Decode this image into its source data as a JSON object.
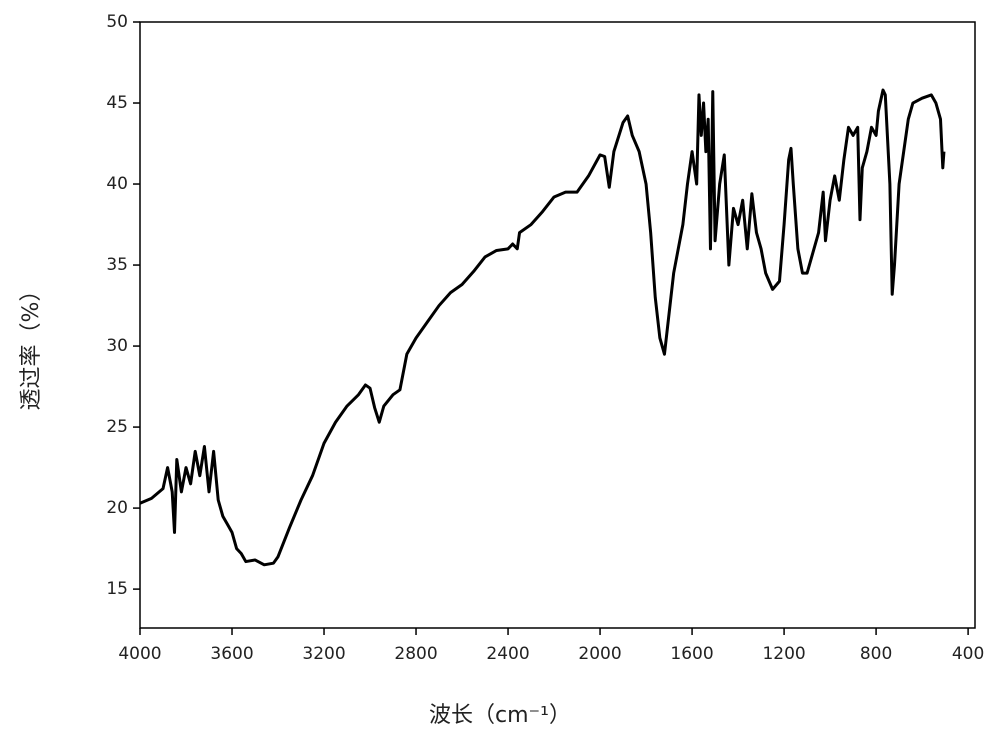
{
  "chart_data": {
    "type": "line",
    "x_label": "波长（cm⁻¹）",
    "y_label": "透过率（%）",
    "xlim": [
      4000,
      370
    ],
    "ylim": [
      12.6,
      50
    ],
    "xticks": [
      4000,
      3600,
      3200,
      2800,
      2400,
      2000,
      1600,
      1200,
      800,
      400
    ],
    "yticks": [
      15,
      20,
      25,
      30,
      35,
      40,
      45,
      50
    ],
    "grid": false,
    "series": [
      {
        "name": null,
        "color": "#000000",
        "x": [
          4000,
          3950,
          3900,
          3880,
          3860,
          3850,
          3840,
          3820,
          3800,
          3780,
          3760,
          3740,
          3720,
          3700,
          3680,
          3660,
          3640,
          3620,
          3600,
          3580,
          3560,
          3540,
          3500,
          3460,
          3420,
          3400,
          3350,
          3300,
          3250,
          3200,
          3150,
          3100,
          3050,
          3020,
          3000,
          2980,
          2960,
          2940,
          2900,
          2870,
          2840,
          2800,
          2750,
          2700,
          2650,
          2600,
          2550,
          2500,
          2450,
          2400,
          2380,
          2360,
          2350,
          2300,
          2250,
          2200,
          2150,
          2100,
          2050,
          2000,
          1980,
          1960,
          1940,
          1900,
          1880,
          1860,
          1830,
          1800,
          1780,
          1760,
          1740,
          1720,
          1700,
          1680,
          1660,
          1640,
          1620,
          1600,
          1580,
          1570,
          1560,
          1550,
          1540,
          1530,
          1520,
          1510,
          1500,
          1480,
          1460,
          1440,
          1420,
          1400,
          1380,
          1360,
          1340,
          1320,
          1300,
          1280,
          1250,
          1220,
          1200,
          1180,
          1170,
          1160,
          1140,
          1120,
          1100,
          1080,
          1050,
          1030,
          1020,
          1000,
          980,
          960,
          940,
          920,
          900,
          880,
          870,
          860,
          840,
          820,
          800,
          790,
          770,
          760,
          740,
          730,
          720,
          700,
          680,
          660,
          640,
          600,
          560,
          540,
          520,
          510,
          505
        ],
        "values": [
          20.3,
          20.6,
          21.2,
          22.5,
          21,
          18.5,
          23,
          21,
          22.5,
          21.5,
          23.5,
          22,
          23.8,
          21,
          23.5,
          20.5,
          19.5,
          19,
          18.5,
          17.5,
          17.2,
          16.7,
          16.8,
          16.5,
          16.6,
          17,
          18.8,
          20.5,
          22,
          24,
          25.3,
          26.3,
          27,
          27.6,
          27.4,
          26.2,
          25.3,
          26.3,
          27,
          27.3,
          29.5,
          30.5,
          31.5,
          32.5,
          33.3,
          33.8,
          34.6,
          35.5,
          35.9,
          36,
          36.3,
          36,
          37,
          37.5,
          38.3,
          39.2,
          39.5,
          39.5,
          40.5,
          41.8,
          41.7,
          39.8,
          42,
          43.8,
          44.2,
          43,
          42,
          40,
          37,
          33,
          30.5,
          29.5,
          32,
          34.5,
          36,
          37.5,
          40,
          42,
          40,
          45.5,
          43,
          45,
          42,
          44,
          36,
          45.7,
          36.5,
          40,
          41.8,
          35,
          38.5,
          37.5,
          39,
          36,
          39.4,
          37,
          36,
          34.5,
          33.5,
          34,
          37.5,
          41.5,
          42.2,
          40,
          36,
          34.5,
          34.5,
          35.5,
          37,
          39.5,
          36.5,
          39,
          40.5,
          39,
          41.5,
          43.5,
          43,
          43.5,
          37.8,
          41,
          42,
          43.5,
          43,
          44.5,
          45.8,
          45.5,
          40,
          33.2,
          35,
          40,
          42,
          44,
          45,
          45.3,
          45.5,
          45,
          44,
          41,
          42
        ]
      }
    ]
  }
}
